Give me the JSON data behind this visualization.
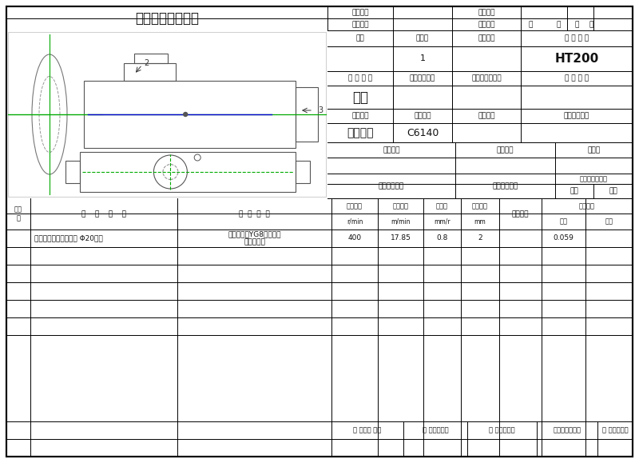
{
  "title": "机械加工工序卡片",
  "bg_color": "#ffffff",
  "header_labels": {
    "product_model": "产品型号",
    "part_drawing": "零件图号",
    "product_name": "产品名称",
    "part_name": "零件名称",
    "total_pages": "共",
    "page_word": "页",
    "page_no": "第",
    "page_word2": "页"
  },
  "row1_labels": {
    "workshop": "车间",
    "process_no": "工序号",
    "process_name": "工序名称",
    "material": "材 料 牌 号"
  },
  "row1_data": {
    "process_no_val": "1",
    "material_val": "HT200"
  },
  "row2_labels": {
    "blank_type": "毛 坑 种 类",
    "blank_size": "毛坑外形尺寸",
    "blank_qty": "每毛坑可制件数",
    "parts_count": "每 台 件 数"
  },
  "row2_data": {
    "blank_type_val": "铸件"
  },
  "row3_labels": {
    "equip_name": "设备名称",
    "equip_model": "设备型号",
    "equip_no": "设备编号",
    "simultaneous": "同时加工件数"
  },
  "row3_data": {
    "equip_name_val": "卧式车床",
    "equip_model_val": "C6140"
  },
  "row4_labels": {
    "fixture_no": "夹具编号",
    "fixture_name": "夹具名称",
    "coolant": "切削液"
  },
  "row5_labels": {
    "tool_no": "工位器具编号",
    "tool_name": "工位器具名称",
    "process_time": "工序工时（分）",
    "setup": "准终",
    "unit": "单件"
  },
  "bottom_header": {
    "step_no": "工步\n号",
    "step_content": "工    步    内    容",
    "process_equip": "工  艺  装  备",
    "spindle_speed_l1": "主轴转速",
    "spindle_speed_l2": "r/min",
    "cut_speed_l1": "切削速度",
    "cut_speed_l2": "m/min",
    "feed_l1": "进给量",
    "feed_l2": "mm/r",
    "cut_depth_l1": "切削深度",
    "cut_depth_l2": "mm",
    "feed_times": "进给次数",
    "step_time": "工步工时",
    "machine": "机动",
    "assist": "辅助"
  },
  "data_rows": [
    {
      "step_no": "",
      "content": "以外圆面与右端面，车 Φ20端面",
      "equip": "专用夹具，YG8，游标卡\n尺，配重块",
      "spindle": "400",
      "cut_speed": "17.85",
      "feed": "0.8",
      "cut_depth": "2",
      "feed_times": "",
      "machine": "0.059",
      "assist": ""
    },
    {
      "step_no": "",
      "content": "",
      "equip": "",
      "spindle": "",
      "cut_speed": "",
      "feed": "",
      "cut_depth": "",
      "feed_times": "",
      "machine": "",
      "assist": ""
    },
    {
      "step_no": "",
      "content": "",
      "equip": "",
      "spindle": "",
      "cut_speed": "",
      "feed": "",
      "cut_depth": "",
      "feed_times": "",
      "machine": "",
      "assist": ""
    },
    {
      "step_no": "",
      "content": "",
      "equip": "",
      "spindle": "",
      "cut_speed": "",
      "feed": "",
      "cut_depth": "",
      "feed_times": "",
      "machine": "",
      "assist": ""
    },
    {
      "step_no": "",
      "content": "",
      "equip": "",
      "spindle": "",
      "cut_speed": "",
      "feed": "",
      "cut_depth": "",
      "feed_times": "",
      "machine": "",
      "assist": ""
    },
    {
      "step_no": "",
      "content": "",
      "equip": "",
      "spindle": "",
      "cut_speed": "",
      "feed": "",
      "cut_depth": "",
      "feed_times": "",
      "machine": "",
      "assist": ""
    }
  ],
  "footer": {
    "design": "设 计（日 期）",
    "check": "校 对（日期）",
    "audit": "审 核（日期）",
    "standardize": "标准化（日期）",
    "approve": "会 签（日期）"
  },
  "green_color": "#00aa00",
  "draw_color": "#555555",
  "thin_color": "#aaaaaa"
}
